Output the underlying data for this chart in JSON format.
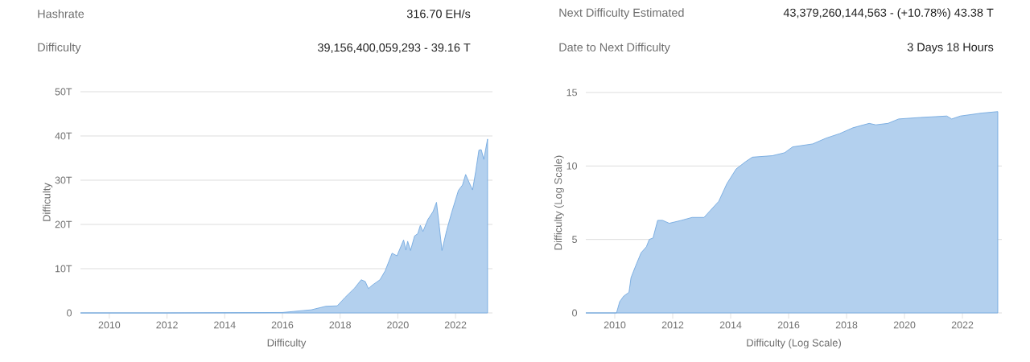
{
  "chart_data": [
    {
      "type": "other",
      "annotations": [
        "Hashrate",
        "316.70 EH/s",
        "Difficulty",
        "39,156,400,059,293 - 39.16 T",
        "Next Difficulty Estimated",
        "43,379,260,144,563 - (+10.78%) 43.38 T",
        "Date to Next Difficulty",
        "3 Days 18 Hours"
      ]
    },
    {
      "type": "area",
      "xlabel": "Difficulty",
      "ylabel": "Difficulty",
      "color": "#74a9e0",
      "grid": "y",
      "xlim": [
        2009.0,
        2023.28
      ],
      "ylim": [
        0,
        50
      ],
      "xticks": [
        2010,
        2012,
        2014,
        2016,
        2018,
        2020,
        2022
      ],
      "yticks": [
        0,
        {
          "value": 10,
          "label": "10T"
        },
        {
          "value": 20,
          "label": "20T"
        },
        {
          "value": 30,
          "label": "30T"
        },
        {
          "value": 40,
          "label": "40T"
        },
        {
          "value": 50,
          "label": "50T"
        }
      ],
      "x": [
        2009.0,
        2012.0,
        2016.0,
        2017.0,
        2017.5,
        2017.9,
        2018.17,
        2018.5,
        2018.73,
        2018.87,
        2018.98,
        2019.1,
        2019.38,
        2019.56,
        2019.8,
        2019.97,
        2020.2,
        2020.28,
        2020.34,
        2020.44,
        2020.58,
        2020.69,
        2020.78,
        2020.87,
        2021.04,
        2021.22,
        2021.34,
        2021.41,
        2021.53,
        2021.69,
        2021.87,
        2022.1,
        2022.24,
        2022.35,
        2022.47,
        2022.59,
        2022.7,
        2022.81,
        2022.89,
        2022.98,
        2023.11
      ],
      "values": [
        0,
        0,
        0.1,
        0.7,
        1.5,
        1.6,
        3.5,
        5.6,
        7.5,
        7.1,
        5.5,
        6.2,
        7.5,
        9.5,
        13.5,
        12.9,
        16.5,
        14.2,
        16.2,
        14.1,
        17.4,
        17.9,
        19.8,
        18.4,
        21.1,
        22.9,
        25.0,
        21.1,
        14.1,
        18.6,
        22.8,
        27.7,
        28.9,
        31.3,
        29.5,
        27.8,
        32.0,
        36.8,
        36.9,
        34.7,
        39.3
      ]
    },
    {
      "type": "area",
      "xlabel": "Difficulty (Log Scale)",
      "ylabel": "Difficulty (Log Scale)",
      "color": "#74a9e0",
      "grid": "y",
      "xlim": [
        2009.0,
        2023.36
      ],
      "ylim": [
        0,
        15
      ],
      "xticks": [
        2010,
        2012,
        2014,
        2016,
        2018,
        2020,
        2022
      ],
      "yticks": [
        0,
        5,
        10,
        15
      ],
      "x": [
        2009.0,
        2010.06,
        2010.17,
        2010.31,
        2010.49,
        2010.56,
        2010.72,
        2010.91,
        2011.09,
        2011.19,
        2011.32,
        2011.48,
        2011.65,
        2011.88,
        2012.3,
        2012.67,
        2013.08,
        2013.31,
        2013.59,
        2013.87,
        2014.19,
        2014.52,
        2014.75,
        2015.44,
        2015.86,
        2016.14,
        2016.83,
        2017.3,
        2017.76,
        2018.22,
        2018.78,
        2019.01,
        2019.43,
        2019.8,
        2020.54,
        2021.46,
        2021.63,
        2021.93,
        2022.67,
        2023.22
      ],
      "values": [
        0,
        0,
        0.77,
        1.15,
        1.4,
        2.4,
        3.2,
        4.1,
        4.5,
        5.0,
        5.1,
        6.3,
        6.3,
        6.1,
        6.3,
        6.5,
        6.5,
        7.0,
        7.6,
        8.8,
        9.8,
        10.3,
        10.6,
        10.7,
        10.9,
        11.3,
        11.5,
        11.9,
        12.2,
        12.6,
        12.9,
        12.8,
        12.9,
        13.2,
        13.3,
        13.4,
        13.2,
        13.4,
        13.6,
        13.7
      ]
    }
  ]
}
